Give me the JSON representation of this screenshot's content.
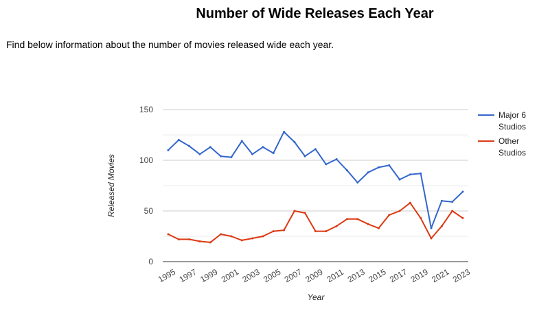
{
  "page": {
    "title": "Number of Wide Releases Each Year",
    "intro": "Find below information about the number of movies released wide each year."
  },
  "chart_data": {
    "type": "line",
    "xlabel": "Year",
    "ylabel": "Released Movies",
    "ylim": [
      0,
      150
    ],
    "yticks": [
      0,
      50,
      100,
      150
    ],
    "grid": true,
    "legend_position": "right",
    "x": [
      1995,
      1996,
      1997,
      1998,
      1999,
      2000,
      2001,
      2002,
      2003,
      2004,
      2005,
      2006,
      2007,
      2008,
      2009,
      2010,
      2011,
      2012,
      2013,
      2014,
      2015,
      2016,
      2017,
      2018,
      2019,
      2020,
      2021,
      2022,
      2023
    ],
    "xtick_labels": [
      "1995",
      "1997",
      "1999",
      "2001",
      "2003",
      "2005",
      "2007",
      "2009",
      "2011",
      "2013",
      "2015",
      "2017",
      "2019",
      "2021",
      "2023"
    ],
    "series": [
      {
        "name": "Major 6 Studios",
        "legend_lines": [
          "Major 6",
          "Studios"
        ],
        "color": "#3366cc",
        "values": [
          110,
          120,
          114,
          106,
          113,
          104,
          103,
          119,
          106,
          113,
          107,
          128,
          118,
          104,
          111,
          96,
          101,
          90,
          78,
          88,
          93,
          95,
          81,
          86,
          87,
          33,
          60,
          59,
          69
        ]
      },
      {
        "name": "Other Studios",
        "legend_lines": [
          "Other",
          "Studios"
        ],
        "color": "#dc3912",
        "values": [
          27,
          22,
          22,
          20,
          19,
          27,
          25,
          21,
          23,
          25,
          30,
          31,
          50,
          48,
          30,
          30,
          35,
          42,
          42,
          37,
          33,
          46,
          50,
          58,
          43,
          23,
          35,
          50,
          43
        ]
      }
    ]
  }
}
